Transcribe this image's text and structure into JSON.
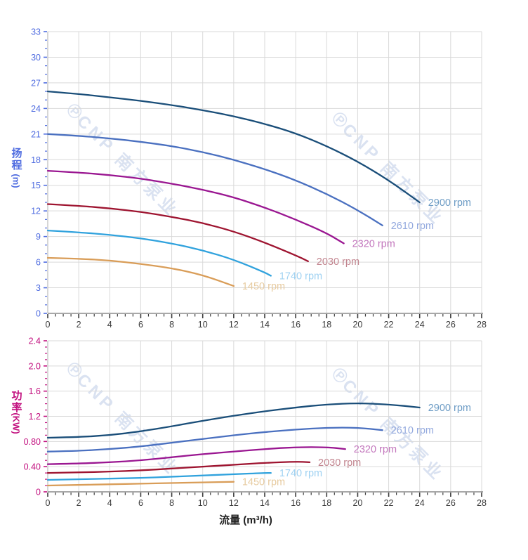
{
  "watermark": {
    "logo": "℗",
    "text": "CNP 南方泵业"
  },
  "x_axis": {
    "title": "流量 (m³/h)",
    "min": 0,
    "max": 28,
    "major_step": 2,
    "minor_step": 0.5,
    "tick_labels": [
      "0",
      "2",
      "4",
      "6",
      "8",
      "10",
      "12",
      "14",
      "16",
      "18",
      "20",
      "22",
      "24",
      "26",
      "28"
    ]
  },
  "chart_data": [
    {
      "type": "line",
      "name": "pump-head-curves",
      "grid": true,
      "legend_position": "curve-end-labels",
      "y_axis": {
        "title": "扬程",
        "unit": "(m)",
        "min": 0,
        "max": 33,
        "major_step": 3,
        "minor_step": 1,
        "tick_labels": [
          "0",
          "3",
          "6",
          "9",
          "12",
          "15",
          "18",
          "21",
          "24",
          "27",
          "30",
          "33"
        ],
        "color": "#4f6ce0"
      },
      "series": [
        {
          "name": "2900-rpm",
          "label": "2900 rpm",
          "color": "#1a4e79",
          "label_color": "#6d9cc5",
          "points": [
            [
              0,
              26.0
            ],
            [
              2,
              25.7
            ],
            [
              4,
              25.3
            ],
            [
              6,
              24.9
            ],
            [
              8,
              24.4
            ],
            [
              10,
              23.8
            ],
            [
              12,
              23.1
            ],
            [
              14,
              22.2
            ],
            [
              16,
              21.1
            ],
            [
              18,
              19.6
            ],
            [
              20,
              17.8
            ],
            [
              22,
              15.6
            ],
            [
              24,
              13.0
            ]
          ]
        },
        {
          "name": "2610-rpm",
          "label": "2610 rpm",
          "color": "#4a70c0",
          "label_color": "#93a9de",
          "points": [
            [
              0,
              21.0
            ],
            [
              2,
              20.8
            ],
            [
              4,
              20.5
            ],
            [
              6,
              20.1
            ],
            [
              8,
              19.6
            ],
            [
              10,
              18.9
            ],
            [
              12,
              18.0
            ],
            [
              14,
              16.9
            ],
            [
              16,
              15.6
            ],
            [
              18,
              14.0
            ],
            [
              20,
              12.1
            ],
            [
              21.6,
              10.3
            ]
          ]
        },
        {
          "name": "2320-rpm",
          "label": "2320 rpm",
          "color": "#9a1691",
          "label_color": "#c377bd",
          "points": [
            [
              0,
              16.7
            ],
            [
              2,
              16.5
            ],
            [
              4,
              16.2
            ],
            [
              6,
              15.8
            ],
            [
              8,
              15.2
            ],
            [
              10,
              14.5
            ],
            [
              12,
              13.6
            ],
            [
              14,
              12.4
            ],
            [
              16,
              11.0
            ],
            [
              18,
              9.4
            ],
            [
              19.1,
              8.2
            ]
          ]
        },
        {
          "name": "2030-rpm",
          "label": "2030 rpm",
          "color": "#9e1430",
          "label_color": "#c2858f",
          "points": [
            [
              0,
              12.8
            ],
            [
              2,
              12.6
            ],
            [
              4,
              12.3
            ],
            [
              6,
              11.9
            ],
            [
              8,
              11.3
            ],
            [
              10,
              10.6
            ],
            [
              12,
              9.6
            ],
            [
              14,
              8.3
            ],
            [
              16,
              6.8
            ],
            [
              16.8,
              6.1
            ]
          ]
        },
        {
          "name": "1740-rpm",
          "label": "1740 rpm",
          "color": "#30a2dd",
          "label_color": "#a0d2f2",
          "points": [
            [
              0,
              9.7
            ],
            [
              2,
              9.5
            ],
            [
              4,
              9.2
            ],
            [
              6,
              8.8
            ],
            [
              8,
              8.2
            ],
            [
              10,
              7.4
            ],
            [
              12,
              6.3
            ],
            [
              14,
              4.8
            ],
            [
              14.4,
              4.4
            ]
          ]
        },
        {
          "name": "1450-rpm",
          "label": "1450 rpm",
          "color": "#d99d58",
          "label_color": "#e7cba0",
          "points": [
            [
              0,
              6.5
            ],
            [
              2,
              6.4
            ],
            [
              4,
              6.2
            ],
            [
              6,
              5.8
            ],
            [
              8,
              5.3
            ],
            [
              10,
              4.5
            ],
            [
              12,
              3.2
            ]
          ]
        }
      ]
    },
    {
      "type": "line",
      "name": "pump-power-curves",
      "grid": true,
      "legend_position": "curve-end-labels",
      "y_axis": {
        "title": "功率",
        "unit": "(KW)",
        "min": 0,
        "max": 2.4,
        "major_step": 0.4,
        "minor_step": 0.1,
        "tick_labels": [
          "0",
          "0.40",
          "0.80",
          "1.2",
          "1.6",
          "2.0",
          "2.4"
        ],
        "color": "#c2107f"
      },
      "series": [
        {
          "name": "2900-rpm",
          "label": "2900 rpm",
          "color": "#1a4e79",
          "label_color": "#6d9cc5",
          "points": [
            [
              0,
              0.86
            ],
            [
              2,
              0.87
            ],
            [
              4,
              0.9
            ],
            [
              6,
              0.96
            ],
            [
              8,
              1.04
            ],
            [
              10,
              1.13
            ],
            [
              12,
              1.21
            ],
            [
              14,
              1.28
            ],
            [
              16,
              1.34
            ],
            [
              18,
              1.39
            ],
            [
              20,
              1.41
            ],
            [
              22,
              1.39
            ],
            [
              24,
              1.34
            ]
          ]
        },
        {
          "name": "2610-rpm",
          "label": "2610 rpm",
          "color": "#4a70c0",
          "label_color": "#93a9de",
          "points": [
            [
              0,
              0.64
            ],
            [
              2,
              0.65
            ],
            [
              4,
              0.68
            ],
            [
              6,
              0.72
            ],
            [
              8,
              0.78
            ],
            [
              10,
              0.84
            ],
            [
              12,
              0.9
            ],
            [
              14,
              0.95
            ],
            [
              16,
              0.99
            ],
            [
              18,
              1.02
            ],
            [
              20,
              1.02
            ],
            [
              21.6,
              0.98
            ]
          ]
        },
        {
          "name": "2320-rpm",
          "label": "2320 rpm",
          "color": "#9a1691",
          "label_color": "#c377bd",
          "points": [
            [
              0,
              0.44
            ],
            [
              2,
              0.45
            ],
            [
              4,
              0.47
            ],
            [
              6,
              0.5
            ],
            [
              8,
              0.55
            ],
            [
              10,
              0.6
            ],
            [
              12,
              0.64
            ],
            [
              14,
              0.68
            ],
            [
              16,
              0.71
            ],
            [
              18,
              0.71
            ],
            [
              19.2,
              0.68
            ]
          ]
        },
        {
          "name": "2030-rpm",
          "label": "2030 rpm",
          "color": "#9e1430",
          "label_color": "#c2858f",
          "points": [
            [
              0,
              0.3
            ],
            [
              2,
              0.31
            ],
            [
              4,
              0.32
            ],
            [
              6,
              0.34
            ],
            [
              8,
              0.37
            ],
            [
              10,
              0.4
            ],
            [
              12,
              0.43
            ],
            [
              14,
              0.46
            ],
            [
              16,
              0.48
            ],
            [
              16.9,
              0.47
            ]
          ]
        },
        {
          "name": "1740-rpm",
          "label": "1740 rpm",
          "color": "#30a2dd",
          "label_color": "#a0d2f2",
          "points": [
            [
              0,
              0.19
            ],
            [
              2,
              0.2
            ],
            [
              4,
              0.21
            ],
            [
              6,
              0.22
            ],
            [
              8,
              0.24
            ],
            [
              10,
              0.26
            ],
            [
              12,
              0.28
            ],
            [
              14,
              0.3
            ],
            [
              14.4,
              0.3
            ]
          ]
        },
        {
          "name": "1450-rpm",
          "label": "1450 rpm",
          "color": "#d99d58",
          "label_color": "#e7cba0",
          "points": [
            [
              0,
              0.1
            ],
            [
              2,
              0.11
            ],
            [
              4,
              0.12
            ],
            [
              6,
              0.13
            ],
            [
              8,
              0.14
            ],
            [
              10,
              0.15
            ],
            [
              12,
              0.16
            ]
          ]
        }
      ]
    }
  ]
}
